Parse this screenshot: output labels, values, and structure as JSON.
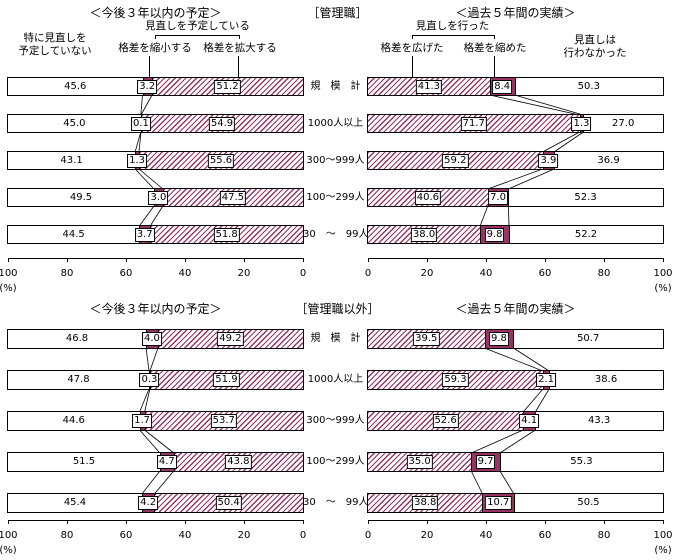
{
  "titles": {
    "top_plan": "＜今後３年以内の予定＞",
    "top_group": "［管理職］",
    "top_result": "＜過去５年間の実績＞",
    "bottom_plan": "＜今後３年以内の予定＞",
    "bottom_group": "［管理職以外］",
    "bottom_result": "＜過去５年間の実績＞"
  },
  "annotations": {
    "plan_none": "特に見直しを\n予定していない",
    "plan_group": "見直しを予定している",
    "plan_shrink": "格差を縮小する",
    "plan_expand": "格差を拡大する",
    "result_group": "見直しを行った",
    "result_widen": "格差を広げた",
    "result_narrow": "格差を縮めた",
    "result_none": "見直しは\n行わなかった"
  },
  "categories": [
    "規　模　計",
    "1000人以上",
    "300～999人",
    "100～299人",
    "30　～　99人"
  ],
  "axis_unit": "(%)",
  "colors": {
    "segment_dark": "#993366",
    "hatch_stripe": "#993366",
    "bar_border": "#000000",
    "background": "#ffffff"
  },
  "chart_data": [
    {
      "id": "plan-managers",
      "type": "bar",
      "orientation": "horizontal-stacked",
      "title": "＜今後３年以内の予定＞［管理職］",
      "axis": {
        "min": 0,
        "max": 100,
        "direction": "right-to-left",
        "ticks": [
          "100",
          "80",
          "60",
          "40",
          "20",
          "0"
        ],
        "unit": "(%)"
      },
      "categories": [
        "規　模　計",
        "1000人以上",
        "300～999人",
        "100～299人",
        "30　～　99人"
      ],
      "series": [
        {
          "name": "特に見直しを予定していない",
          "style": "plain",
          "values": [
            45.6,
            45.0,
            43.1,
            49.5,
            44.5
          ]
        },
        {
          "name": "格差を縮小する",
          "style": "dark",
          "values": [
            3.2,
            0.1,
            1.3,
            3.0,
            3.7
          ]
        },
        {
          "name": "格差を拡大する",
          "style": "hatch",
          "values": [
            51.2,
            54.9,
            55.6,
            47.5,
            51.8
          ]
        }
      ]
    },
    {
      "id": "result-managers",
      "type": "bar",
      "orientation": "horizontal-stacked",
      "title": "＜過去５年間の実績＞［管理職］",
      "axis": {
        "min": 0,
        "max": 100,
        "direction": "left-to-right",
        "ticks": [
          "0",
          "20",
          "40",
          "60",
          "80",
          "100"
        ],
        "unit": "(%)"
      },
      "categories": [
        "規　模　計",
        "1000人以上",
        "300～999人",
        "100～299人",
        "30　～　99人"
      ],
      "series": [
        {
          "name": "格差を広げた",
          "style": "hatch",
          "values": [
            41.3,
            71.7,
            59.2,
            40.6,
            38.0
          ]
        },
        {
          "name": "格差を縮めた",
          "style": "dark",
          "values": [
            8.4,
            1.3,
            3.9,
            7.0,
            9.8
          ]
        },
        {
          "name": "見直しは行わなかった",
          "style": "plain",
          "values": [
            50.3,
            27.0,
            36.9,
            52.3,
            52.2
          ]
        }
      ]
    },
    {
      "id": "plan-non-managers",
      "type": "bar",
      "orientation": "horizontal-stacked",
      "title": "＜今後３年以内の予定＞［管理職以外］",
      "axis": {
        "min": 0,
        "max": 100,
        "direction": "right-to-left",
        "ticks": [
          "100",
          "80",
          "60",
          "40",
          "20",
          "0"
        ],
        "unit": "(%)"
      },
      "categories": [
        "規　模　計",
        "1000人以上",
        "300～999人",
        "100～299人",
        "30　～　99人"
      ],
      "series": [
        {
          "name": "特に見直しを予定していない",
          "style": "plain",
          "values": [
            46.8,
            47.8,
            44.6,
            51.5,
            45.4
          ]
        },
        {
          "name": "格差を縮小する",
          "style": "dark",
          "values": [
            4.0,
            0.3,
            1.7,
            4.7,
            4.2
          ]
        },
        {
          "name": "格差を拡大する",
          "style": "hatch",
          "values": [
            49.2,
            51.9,
            53.7,
            43.8,
            50.4
          ]
        }
      ]
    },
    {
      "id": "result-non-managers",
      "type": "bar",
      "orientation": "horizontal-stacked",
      "title": "＜過去５年間の実績＞［管理職以外］",
      "axis": {
        "min": 0,
        "max": 100,
        "direction": "left-to-right",
        "ticks": [
          "0",
          "20",
          "40",
          "60",
          "80",
          "100"
        ],
        "unit": "(%)"
      },
      "categories": [
        "規　模　計",
        "1000人以上",
        "300～999人",
        "100～299人",
        "30　～　99人"
      ],
      "series": [
        {
          "name": "格差を広げた",
          "style": "hatch",
          "values": [
            39.5,
            59.3,
            52.6,
            35.0,
            38.8
          ]
        },
        {
          "name": "格差を縮めた",
          "style": "dark",
          "values": [
            9.8,
            2.1,
            4.1,
            9.7,
            10.7
          ]
        },
        {
          "name": "見直しは行わなかった",
          "style": "plain",
          "values": [
            50.7,
            38.6,
            43.3,
            55.3,
            50.5
          ]
        }
      ]
    }
  ]
}
